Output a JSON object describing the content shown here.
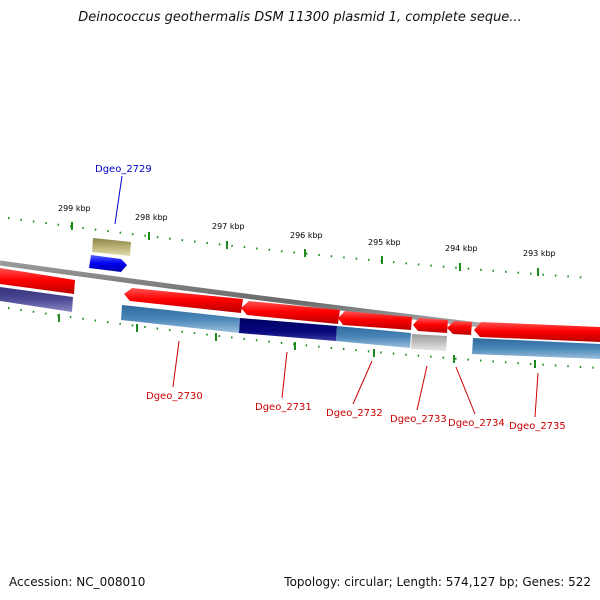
{
  "title": "Deinococcus geothermalis DSM 11300 plasmid 1, complete seque...",
  "footer": {
    "accession": "Accession: NC_008010",
    "summary": "Topology: circular; Length: 574,127 bp; Genes: 522"
  },
  "scale": {
    "tick_labels": [
      "299 kbp",
      "298 kbp",
      "297 kbp",
      "296 kbp",
      "295 kbp",
      "294 kbp",
      "293 kbp"
    ],
    "tick_color": "#228b22"
  },
  "genes": [
    {
      "name": "Dgeo_2729",
      "color": "#0000cc",
      "strand": "+"
    },
    {
      "name": "Dgeo_2730",
      "color": "#cc0000",
      "strand": "-"
    },
    {
      "name": "Dgeo_2731",
      "color": "#cc0000",
      "strand": "-"
    },
    {
      "name": "Dgeo_2732",
      "color": "#cc0000",
      "strand": "-"
    },
    {
      "name": "Dgeo_2733",
      "color": "#cc0000",
      "strand": "-"
    },
    {
      "name": "Dgeo_2734",
      "color": "#cc0000",
      "strand": "-"
    },
    {
      "name": "Dgeo_2735",
      "color": "#cc0000",
      "strand": "-"
    }
  ],
  "colors": {
    "backbone": "#888888",
    "cds_red": "#ee0000",
    "cds_blue": "#0000ee",
    "cog_blue": "#4a82b4",
    "cog_navy": "#0a0a7a",
    "cog_gray": "#b8b8b8",
    "cog_olive": "#b8b070",
    "cog_purple": "#4a4890"
  }
}
